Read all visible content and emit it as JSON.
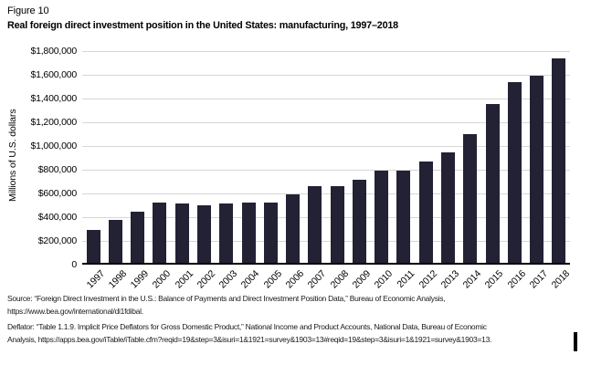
{
  "figure_label": "Figure 10",
  "title": "Real foreign direct investment position in the United States: manufacturing, 1997–2018",
  "chart_data": {
    "type": "bar",
    "title": "Real foreign direct investment position in the United States: manufacturing, 1997–2018",
    "xlabel": "",
    "ylabel": "Millions of U.S. dollars",
    "ylim": [
      0,
      1800000
    ],
    "ytick_interval": 200000,
    "grid": true,
    "legend": "none",
    "bar_color": "#232134",
    "gridline_color": "#d6d6d6",
    "ytick_labels": [
      "$1,800,000",
      "$1,600,000",
      "$1,400,000",
      "$1,200,000",
      "$1,000,000",
      "$800,000",
      "$600,000",
      "$400,000",
      "$200,000",
      "0"
    ],
    "categories": [
      "1997",
      "1998",
      "1999",
      "2000",
      "2001",
      "2002",
      "2003",
      "2004",
      "2005",
      "2006",
      "2007",
      "2008",
      "2009",
      "2010",
      "2011",
      "2012",
      "2013",
      "2014",
      "2015",
      "2016",
      "2017",
      "2018"
    ],
    "values": [
      295000,
      375000,
      445000,
      520000,
      515000,
      500000,
      515000,
      520000,
      525000,
      595000,
      665000,
      660000,
      715000,
      795000,
      790000,
      870000,
      945000,
      1100000,
      1350000,
      1540000,
      1590000,
      1740000
    ]
  },
  "source": {
    "lines": [
      "Source: “Foreign Direct Investment in the U.S.: Balance of Payments and Direct Investment Position Data,” Bureau of Economic Analysis,",
      "https://www.bea.gov/international/di1fdibal.",
      "Deflator: “Table 1.1.9. Implicit Price Deflators for Gross Domestic Product,” National Income and Product Accounts, National Data, Bureau of Economic",
      "Analysis, https://apps.bea.gov/iTable/iTable.cfm?reqid=19&step=3&isuri=1&1921=survey&1903=13#reqid=19&step=3&isuri=1&1921=survey&1903=13."
    ]
  }
}
